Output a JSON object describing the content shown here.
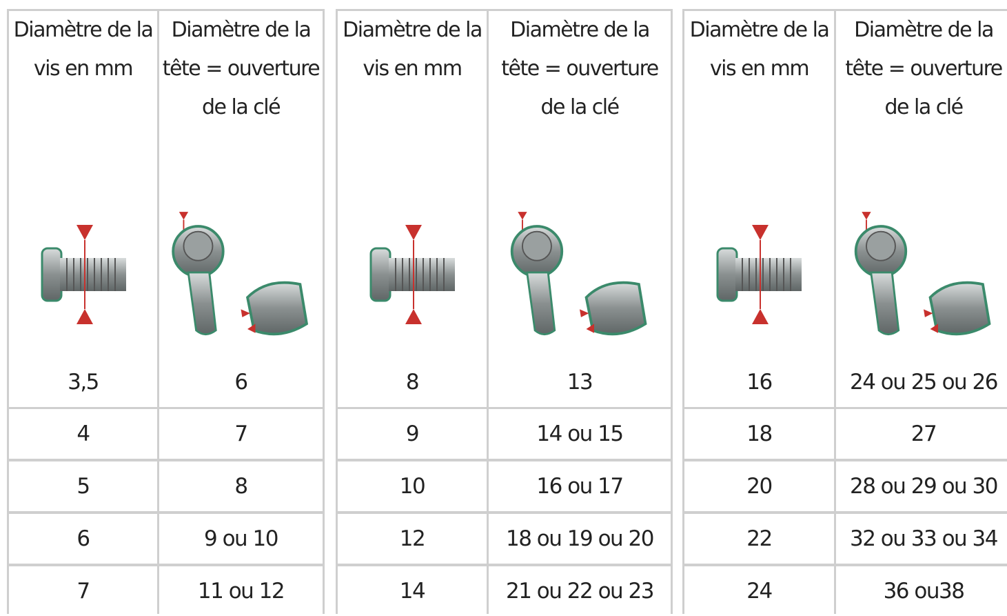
{
  "table": {
    "groups": [
      {
        "headers": [
          "Diamètre de la vis en mm",
          "Diamètre de la tête = ouverture de la clé"
        ],
        "rows": [
          [
            "3,5",
            6
          ],
          [
            4,
            7
          ],
          [
            5,
            8
          ],
          [
            6,
            "9 ou 10"
          ],
          [
            7,
            "11 ou 12"
          ]
        ]
      },
      {
        "headers": [
          "Diamètre de la vis en mm",
          "Diamètre de la tête = ouverture de la clé"
        ],
        "rows": [
          [
            8,
            13
          ],
          [
            9,
            "14 ou 15"
          ],
          [
            10,
            "16 ou 17"
          ],
          [
            12,
            "18 ou 19 ou 20"
          ],
          [
            14,
            "21 ou 22 ou 23"
          ]
        ]
      },
      {
        "headers": [
          "Diamètre de la vis en mm",
          "Diamètre de la tête = ouverture de la clé"
        ],
        "rows": [
          [
            16,
            "24 ou 25 ou 26"
          ],
          [
            18,
            27
          ],
          [
            20,
            "28 ou 29 ou 30"
          ],
          [
            22,
            "32 ou 33 ou 34"
          ],
          [
            24,
            "36 ou38"
          ]
        ]
      }
    ]
  }
}
